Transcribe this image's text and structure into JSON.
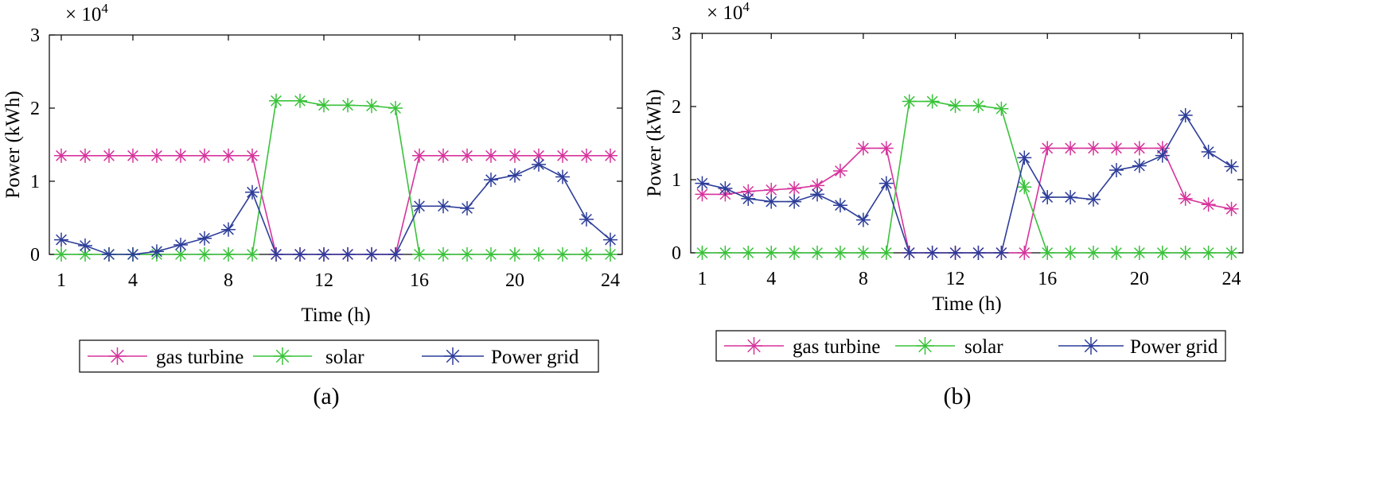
{
  "chart_data": [
    {
      "type": "line",
      "panel_label": "(a)",
      "multiplier": "× 10",
      "multiplier_exp": "4",
      "xlabel": "Time (h)",
      "ylabel": "Power (kWh)",
      "xlim": [
        0.5,
        24.5
      ],
      "ylim": [
        0,
        3
      ],
      "xticks": [
        1,
        4,
        8,
        12,
        16,
        20,
        24
      ],
      "yticks": [
        0,
        1,
        2,
        3
      ],
      "legend_position": "bottom",
      "x": [
        1,
        2,
        3,
        4,
        5,
        6,
        7,
        8,
        9,
        10,
        11,
        12,
        13,
        14,
        15,
        16,
        17,
        18,
        19,
        20,
        21,
        22,
        23,
        24
      ],
      "series": [
        {
          "name": "gas turbine",
          "color": "#d6339c",
          "values": [
            1.35,
            1.35,
            1.35,
            1.35,
            1.35,
            1.35,
            1.35,
            1.35,
            1.35,
            0,
            0,
            0,
            0,
            0,
            0,
            1.35,
            1.35,
            1.35,
            1.35,
            1.35,
            1.35,
            1.35,
            1.35,
            1.35
          ]
        },
        {
          "name": "solar",
          "color": "#39c23a",
          "values": [
            0,
            0,
            0,
            0,
            0,
            0,
            0,
            0,
            0,
            2.1,
            2.1,
            2.04,
            2.04,
            2.03,
            2.0,
            0,
            0,
            0,
            0,
            0,
            0,
            0,
            0,
            0
          ]
        },
        {
          "name": "Power grid",
          "color": "#2d3d99",
          "values": [
            0.2,
            0.12,
            0,
            0,
            0.04,
            0.13,
            0.22,
            0.34,
            0.85,
            0,
            0,
            0,
            0,
            0,
            0,
            0.66,
            0.66,
            0.63,
            1.02,
            1.08,
            1.23,
            1.06,
            0.48,
            0.2
          ]
        }
      ]
    },
    {
      "type": "line",
      "panel_label": "(b)",
      "multiplier": "× 10",
      "multiplier_exp": "4",
      "xlabel": "Time (h)",
      "ylabel": "Power (kWh)",
      "xlim": [
        0.5,
        24.5
      ],
      "ylim": [
        0,
        3
      ],
      "xticks": [
        1,
        4,
        8,
        12,
        16,
        20,
        24
      ],
      "yticks": [
        0,
        1,
        2,
        3
      ],
      "legend_position": "bottom",
      "x": [
        1,
        2,
        3,
        4,
        5,
        6,
        7,
        8,
        9,
        10,
        11,
        12,
        13,
        14,
        15,
        16,
        17,
        18,
        19,
        20,
        21,
        22,
        23,
        24
      ],
      "series": [
        {
          "name": "gas turbine",
          "color": "#d6339c",
          "values": [
            0.8,
            0.8,
            0.84,
            0.86,
            0.88,
            0.92,
            1.12,
            1.43,
            1.43,
            0,
            0,
            0,
            0,
            0,
            0,
            1.43,
            1.43,
            1.43,
            1.43,
            1.43,
            1.43,
            0.74,
            0.66,
            0.6
          ]
        },
        {
          "name": "solar",
          "color": "#39c23a",
          "values": [
            0,
            0,
            0,
            0,
            0,
            0,
            0,
            0,
            0,
            2.07,
            2.07,
            2.01,
            2.01,
            1.97,
            0.9,
            0,
            0,
            0,
            0,
            0,
            0,
            0,
            0,
            0
          ]
        },
        {
          "name": "Power grid",
          "color": "#2d3d99",
          "values": [
            0.95,
            0.88,
            0.74,
            0.7,
            0.7,
            0.8,
            0.65,
            0.45,
            0.95,
            0,
            0,
            0,
            0,
            0,
            1.3,
            0.76,
            0.76,
            0.73,
            1.13,
            1.19,
            1.33,
            1.88,
            1.38,
            1.18
          ]
        }
      ]
    }
  ]
}
